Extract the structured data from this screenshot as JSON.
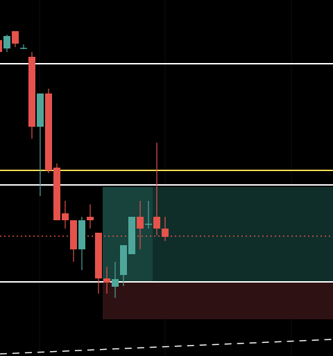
{
  "chart_data": {
    "type": "candlestick",
    "ylim": [
      0,
      514
    ],
    "open": [
      456,
      444,
      469,
      445,
      432,
      331,
      379,
      272,
      206,
      196,
      154,
      201,
      178,
      112,
      100,
      117,
      147,
      201,
      190,
      201,
      184
    ],
    "high": [
      456,
      464,
      469,
      450,
      439,
      379,
      386,
      278,
      224,
      196,
      201,
      219,
      178,
      129,
      136,
      160,
      201,
      224,
      224,
      308,
      201
    ],
    "low": [
      439,
      439,
      446,
      443,
      314,
      231,
      264,
      196,
      184,
      136,
      124,
      184,
      90,
      90,
      84,
      101,
      147,
      154,
      184,
      174,
      166
    ],
    "close": [
      439,
      462,
      451,
      445,
      331,
      379,
      268,
      196,
      196,
      154,
      196,
      196,
      112,
      106,
      111,
      160,
      201,
      184,
      191,
      184,
      172
    ],
    "up_color": "#4fa79b",
    "down_color": "#e5534b",
    "levels": [
      {
        "value": 422,
        "color": "#ffffff",
        "style": "solid"
      },
      {
        "value": 268,
        "color": "#f5e05a",
        "style": "solid"
      },
      {
        "value": 247,
        "color": "#ffffff",
        "style": "solid"
      },
      {
        "value": 173,
        "color": "#e5534b",
        "style": "dotted"
      },
      {
        "value": 107,
        "color": "#ffffff",
        "style": "solid"
      }
    ],
    "position": {
      "start": 13,
      "entry": 107,
      "target": 244,
      "stop": 53
    },
    "trendline": [
      3,
      24
    ]
  }
}
